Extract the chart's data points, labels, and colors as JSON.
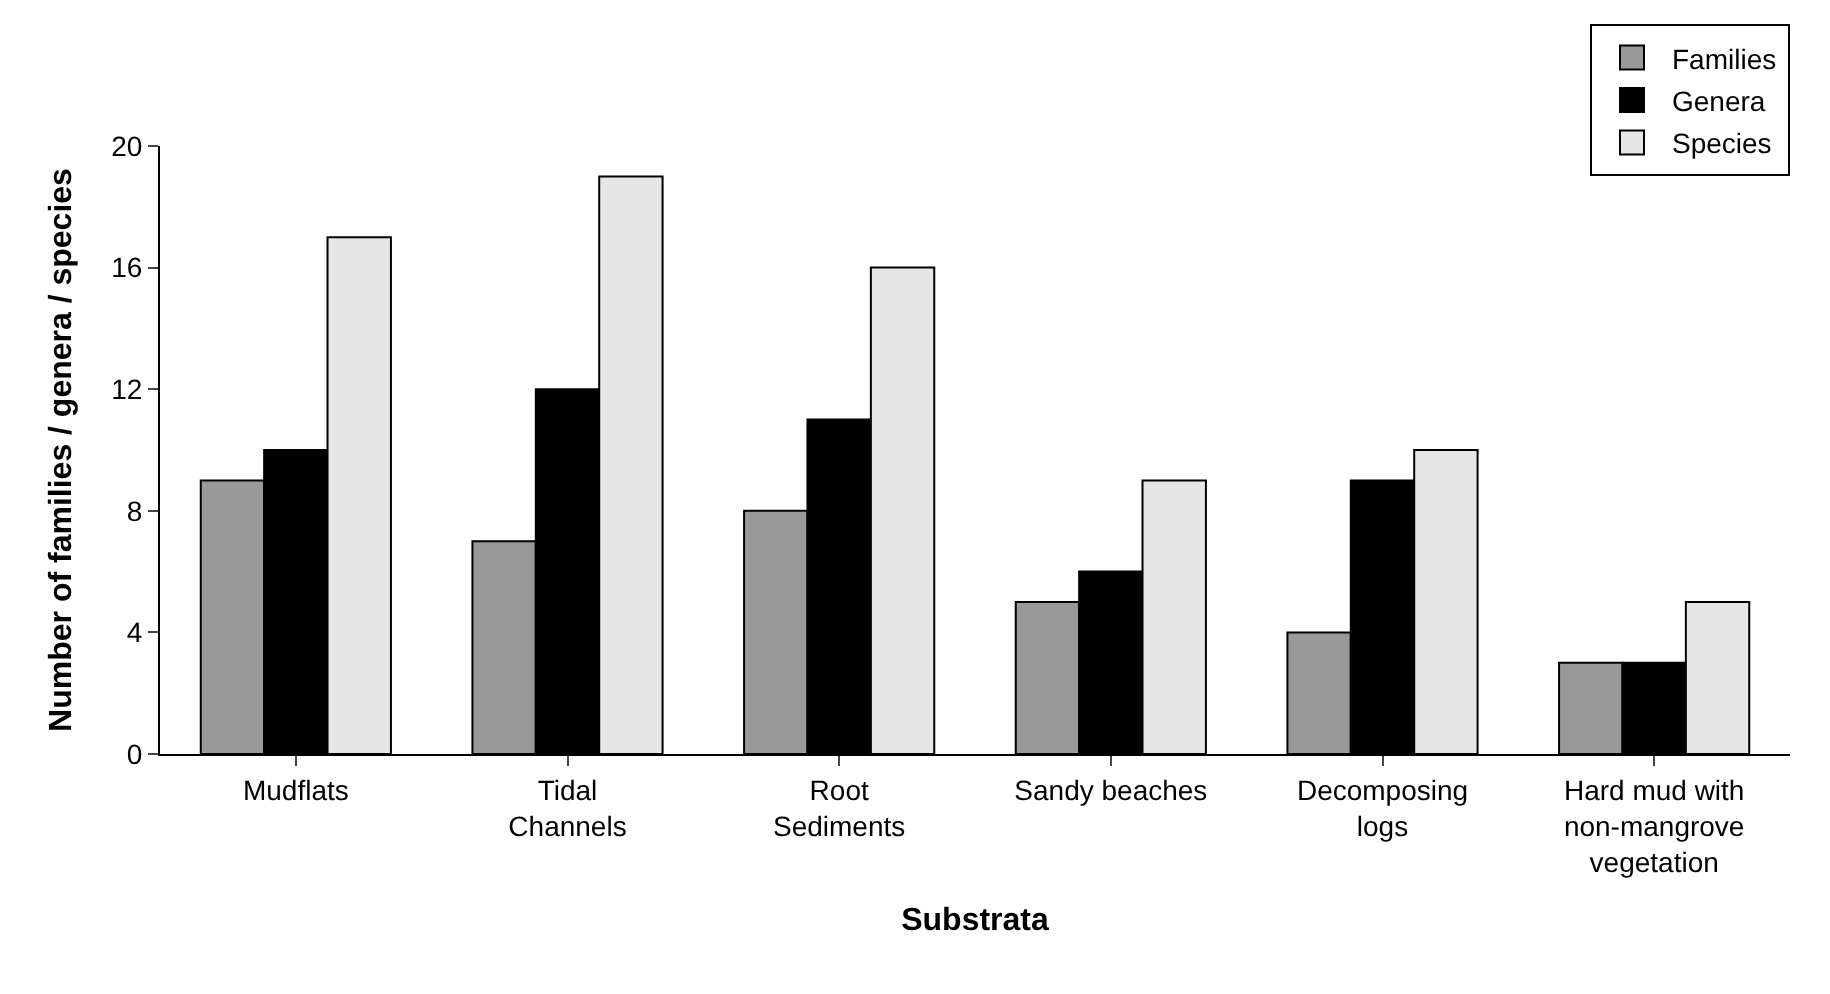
{
  "chart_data": {
    "type": "bar",
    "xlabel": "Substrata",
    "ylabel": "Number of families / genera / species",
    "categories": [
      "Mudflats",
      "Tidal Channels",
      "Root Sediments",
      "Sandy beaches",
      "Decomposing logs",
      "Hard mud with non-mangrove vegetation"
    ],
    "series": [
      {
        "name": "Families",
        "color": "#999999",
        "values": [
          9,
          7,
          8,
          5,
          4,
          3
        ]
      },
      {
        "name": "Genera",
        "color": "#000000",
        "values": [
          10,
          12,
          11,
          6,
          9,
          3
        ]
      },
      {
        "name": "Species",
        "color": "#e6e6e6",
        "values": [
          17,
          19,
          16,
          9,
          10,
          5
        ]
      }
    ],
    "ylim": [
      0,
      20
    ],
    "yticks": [
      0,
      4,
      8,
      12,
      16,
      20
    ],
    "legend": "top right"
  }
}
